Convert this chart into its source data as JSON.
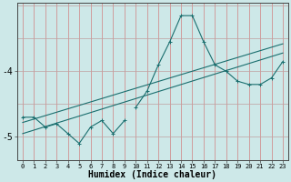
{
  "xlabel": "Humidex (Indice chaleur)",
  "bg_color": "#cde8e8",
  "line_color": "#1a6e6e",
  "grid_color_v": "#d08080",
  "grid_color_h": "#c0a0a0",
  "x_values": [
    0,
    1,
    2,
    3,
    4,
    5,
    6,
    7,
    8,
    9,
    10,
    11,
    12,
    13,
    14,
    15,
    16,
    17,
    18,
    19,
    20,
    21,
    22,
    23
  ],
  "humidex_line": [
    null,
    null,
    null,
    null,
    null,
    null,
    null,
    null,
    null,
    null,
    -4.55,
    -4.3,
    -3.9,
    -3.55,
    -3.15,
    -3.15,
    -3.55,
    -3.9,
    -4.0,
    -4.15,
    -4.2,
    -4.2,
    -4.1,
    -3.85
  ],
  "scatter_line": [
    -4.7,
    -4.7,
    -4.85,
    -4.8,
    -4.95,
    -5.1,
    -4.85,
    -4.75,
    -4.95,
    -4.75,
    null,
    null,
    null,
    null,
    null,
    null,
    null,
    null,
    null,
    null,
    null,
    null,
    null,
    null
  ],
  "reg_line1_x": [
    0,
    23
  ],
  "reg_line1_y": [
    -4.95,
    -3.72
  ],
  "reg_line2_x": [
    0,
    23
  ],
  "reg_line2_y": [
    -4.78,
    -3.58
  ],
  "ylim": [
    -5.35,
    -2.95
  ],
  "yticks": [
    -5.0,
    -4.0
  ],
  "ytick_labels": [
    "-5",
    "-4"
  ],
  "xlim": [
    -0.5,
    23.5
  ],
  "xtick_fontsize": 5.0,
  "ytick_fontsize": 7,
  "xlabel_fontsize": 7
}
